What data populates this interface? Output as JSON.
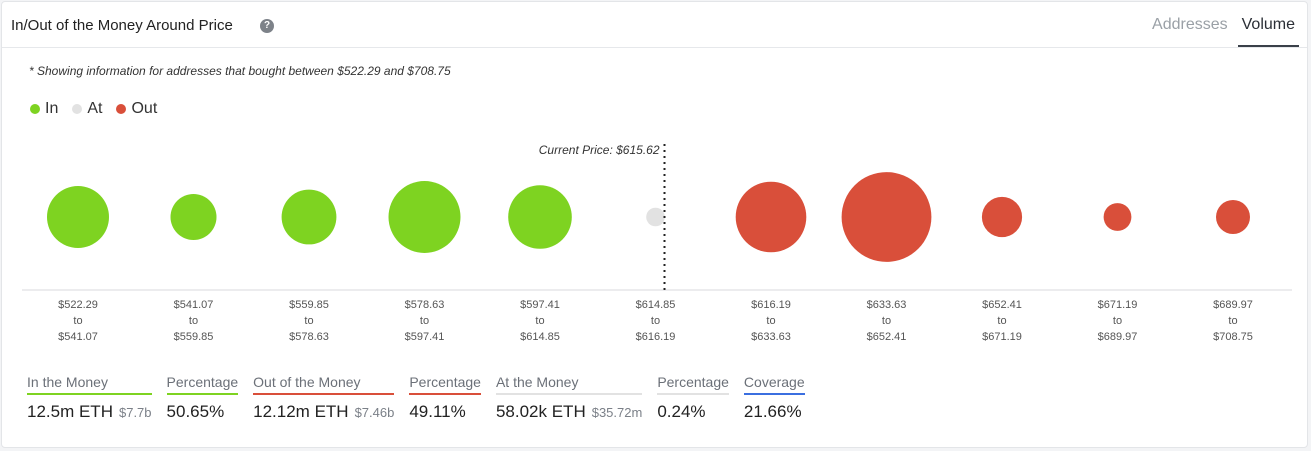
{
  "header": {
    "title": "In/Out of the Money Around Price",
    "help_icon": "question-circle-icon",
    "tabs": [
      {
        "label": "Addresses",
        "active": false
      },
      {
        "label": "Volume",
        "active": true
      }
    ]
  },
  "note": "* Showing information for addresses that bought between $522.29 and $708.75",
  "legend": [
    {
      "label": "In",
      "color": "#7ed321"
    },
    {
      "label": "At",
      "color": "#e2e2e2"
    },
    {
      "label": "Out",
      "color": "#d94f3a"
    }
  ],
  "colors": {
    "in": "#7ed321",
    "at": "#e2e2e2",
    "out": "#d94f3a",
    "coverage": "#3b6fe0"
  },
  "chart_data": {
    "type": "scatter",
    "description_units": "bubble size proportional to volume (relative)",
    "current_price_label": "Current Price: $615.62",
    "current_price": 615.62,
    "bins": [
      {
        "from": "$522.29",
        "to": "$541.07",
        "status": "in",
        "size": 1.0
      },
      {
        "from": "$541.07",
        "to": "$559.85",
        "status": "in",
        "size": 0.55
      },
      {
        "from": "$559.85",
        "to": "$578.63",
        "status": "in",
        "size": 0.78
      },
      {
        "from": "$578.63",
        "to": "$597.41",
        "status": "in",
        "size": 1.35
      },
      {
        "from": "$597.41",
        "to": "$614.85",
        "status": "in",
        "size": 1.05
      },
      {
        "from": "$614.85",
        "to": "$616.19",
        "status": "at",
        "size": 0.09
      },
      {
        "from": "$616.19",
        "to": "$633.63",
        "status": "out",
        "size": 1.3
      },
      {
        "from": "$633.63",
        "to": "$652.41",
        "status": "out",
        "size": 2.1
      },
      {
        "from": "$652.41",
        "to": "$671.19",
        "status": "out",
        "size": 0.42
      },
      {
        "from": "$671.19",
        "to": "$689.97",
        "status": "out",
        "size": 0.2
      },
      {
        "from": "$689.97",
        "to": "$708.75",
        "status": "out",
        "size": 0.3
      }
    ],
    "to_label": "to"
  },
  "stats": [
    {
      "label": "In the Money",
      "value": "12.5m ETH",
      "sub": "$7.7b",
      "color": "#7ed321"
    },
    {
      "label": "Percentage",
      "value": "50.65%",
      "sub": "",
      "color": "#7ed321"
    },
    {
      "label": "Out of the Money",
      "value": "12.12m ETH",
      "sub": "$7.46b",
      "color": "#d94f3a"
    },
    {
      "label": "Percentage",
      "value": "49.11%",
      "sub": "",
      "color": "#d94f3a"
    },
    {
      "label": "At the Money",
      "value": "58.02k ETH",
      "sub": "$35.72m",
      "color": "#e2e2e2"
    },
    {
      "label": "Percentage",
      "value": "0.24%",
      "sub": "",
      "color": "#e2e2e2"
    },
    {
      "label": "Coverage",
      "value": "21.66%",
      "sub": "",
      "color": "#3b6fe0"
    }
  ]
}
